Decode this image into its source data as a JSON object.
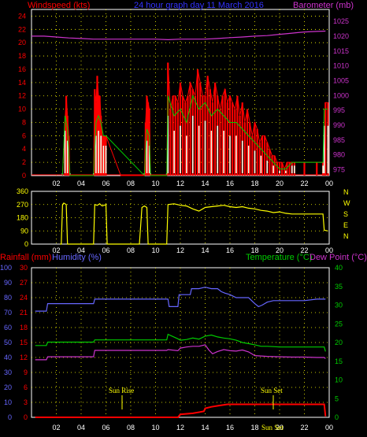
{
  "header": {
    "windspeed_label": "Windspeed (kts)",
    "graph_title": "24 hour graph day 11 March 2016",
    "barometer_label": "Barometer (mb)"
  },
  "bottom_header": {
    "rainfall_label": "Rainfall (mm)",
    "humidity_label": "Humidity (%)",
    "temperature_label": "Temperature (°C)",
    "dewpoint_label": "Dew Point (°C)"
  },
  "colors": {
    "wind_gust": "#ff0000",
    "wind_avg": "#00cc00",
    "wind_light": "#e8ffe8",
    "barometer": "#cc33cc",
    "direction": "#ffff00",
    "humidity": "#6666ff",
    "temperature": "#00cc00",
    "dewpoint": "#cc33cc",
    "rainfall": "#ff0000",
    "grid": "#ffff00"
  },
  "annotations": {
    "sunrise": "Sun Rise",
    "sunset": "Sun Set",
    "sunset_small": "Sun Set"
  },
  "chart_data": [
    {
      "id": "wind",
      "type": "line",
      "title": "24 hour graph day 11 March 2016",
      "xlabel": "",
      "x_ticks": [
        "02",
        "04",
        "06",
        "08",
        "10",
        "12",
        "14",
        "16",
        "18",
        "20",
        "22",
        "00"
      ],
      "xlim": [
        0,
        24
      ],
      "ylabel": "Windspeed (kts)",
      "y_ticks": [
        0,
        2,
        4,
        6,
        8,
        10,
        12,
        14,
        16,
        18,
        20,
        22,
        24
      ],
      "ylim": [
        0,
        25
      ],
      "y2label": "Barometer (mb)",
      "y2_ticks": [
        975,
        980,
        985,
        990,
        995,
        1000,
        1005,
        1010,
        1015,
        1020,
        1025
      ],
      "y2lim": [
        973,
        1029
      ],
      "grid": true,
      "series": [
        {
          "name": "Barometer (mb)",
          "axis": "right",
          "x": [
            0,
            1,
            2,
            3,
            4,
            5,
            6,
            7,
            8,
            9,
            10,
            11,
            12,
            13,
            14,
            15,
            16,
            17,
            18,
            19,
            20,
            21,
            22,
            23,
            23.7
          ],
          "values": [
            1020,
            1020,
            1019.7,
            1019.4,
            1019.2,
            1019,
            1019,
            1019,
            1019,
            1019,
            1019,
            1018.8,
            1019,
            1019,
            1019,
            1019.2,
            1019.5,
            1019.7,
            1020,
            1020.2,
            1020.6,
            1021,
            1021.4,
            1021.6,
            1021.7
          ]
        },
        {
          "name": "gust",
          "x": [
            2.5,
            2.7,
            2.8,
            2.9,
            3.0,
            3.1,
            3.2,
            5.0,
            5.1,
            5.2,
            5.3,
            5.4,
            5.5,
            5.6,
            5.7,
            5.8,
            5.9,
            6.0,
            7.2,
            9.1,
            9.2,
            9.3,
            9.4,
            9.5,
            9.6,
            10.9,
            11.0,
            11.2,
            11.4,
            11.6,
            11.8,
            12.0,
            12.2,
            12.4,
            12.6,
            12.8,
            13.0,
            13.2,
            13.4,
            13.6,
            13.8,
            14.0,
            14.2,
            14.4,
            14.6,
            14.8,
            15.0,
            15.2,
            15.4,
            15.6,
            15.8,
            16.0,
            16.2,
            16.4,
            16.6,
            16.8,
            17.0,
            17.2,
            17.4,
            17.6,
            17.8,
            18.0,
            18.2,
            18.4,
            18.6,
            18.8,
            19.0,
            19.2,
            19.4,
            19.6,
            19.8,
            20.0,
            20.2,
            20.4,
            20.6,
            20.8,
            21.0,
            21.2,
            22.0,
            23.0,
            23.5,
            23.6,
            23.7,
            23.9
          ],
          "values": [
            0,
            8,
            12,
            9,
            6,
            0,
            0,
            0,
            13,
            11,
            15,
            12,
            12,
            9,
            6,
            6,
            6,
            6,
            0,
            0,
            8,
            12,
            11,
            10,
            0,
            0,
            17,
            10,
            12,
            12,
            11,
            14,
            12,
            11,
            12,
            14,
            13,
            12,
            16,
            14,
            12,
            12,
            15,
            13,
            11,
            14,
            12,
            10,
            12,
            13,
            11,
            12,
            11,
            10,
            12,
            9,
            11,
            8,
            10,
            8,
            6,
            8,
            7,
            5,
            6,
            6,
            5,
            4,
            3,
            3,
            2,
            2,
            2,
            1,
            2,
            2,
            2,
            2,
            2,
            2,
            2,
            2,
            11,
            11
          ]
        },
        {
          "name": "average",
          "x": [
            2.5,
            2.7,
            2.9,
            3.1,
            5.0,
            5.2,
            5.4,
            5.6,
            5.8,
            6.0,
            9.1,
            9.3,
            9.5,
            9.6,
            10.9,
            11.0,
            11.5,
            12.0,
            12.5,
            13.0,
            13.5,
            14.0,
            14.5,
            15.0,
            15.5,
            16.0,
            16.5,
            17.0,
            17.5,
            18.0,
            18.5,
            19.0,
            19.5,
            20.0,
            20.5,
            21.0,
            21.2,
            23.5,
            23.6,
            23.9
          ],
          "values": [
            0,
            9,
            7,
            0,
            0,
            8,
            9,
            8,
            6,
            6,
            0,
            7,
            6,
            0,
            0,
            12,
            9,
            10,
            8,
            12,
            10,
            11,
            9,
            10,
            9,
            8,
            8,
            7,
            6,
            5,
            4,
            3,
            2,
            1,
            1,
            2,
            2,
            2,
            10,
            10
          ]
        }
      ]
    },
    {
      "id": "direction",
      "type": "line",
      "title": "",
      "xlabel": "",
      "x_ticks": [
        "02",
        "04",
        "06",
        "08",
        "10",
        "12",
        "14",
        "16",
        "18",
        "20",
        "22",
        "00"
      ],
      "xlim": [
        0,
        24
      ],
      "ylabel": "",
      "y_ticks": [
        0,
        90,
        180,
        270,
        360
      ],
      "ylim": [
        0,
        360
      ],
      "y2_ticks": [
        "N",
        "W",
        "S",
        "E",
        "N"
      ],
      "grid": true,
      "series": [
        {
          "name": "Wind direction",
          "x": [
            2.3,
            2.4,
            2.5,
            2.6,
            2.8,
            2.9,
            5.0,
            5.1,
            5.3,
            5.5,
            5.7,
            6.0,
            6.1,
            8.6,
            8.7,
            8.9,
            9.1,
            9.3,
            9.4,
            10.8,
            10.9,
            11.0,
            11.5,
            12.0,
            12.5,
            13.0,
            13.5,
            14.0,
            14.5,
            15.0,
            15.5,
            16.0,
            16.5,
            17.0,
            17.5,
            18.0,
            18.5,
            19.0,
            19.5,
            20.0,
            20.5,
            21.0,
            22.0,
            23.0,
            23.5,
            23.6,
            23.9
          ],
          "values": [
            0,
            0,
            270,
            280,
            270,
            0,
            0,
            270,
            265,
            275,
            260,
            270,
            0,
            0,
            0,
            250,
            260,
            250,
            0,
            0,
            0,
            270,
            275,
            265,
            260,
            240,
            225,
            250,
            255,
            260,
            265,
            255,
            250,
            255,
            245,
            240,
            230,
            225,
            215,
            220,
            210,
            205,
            205,
            205,
            205,
            95,
            90
          ]
        }
      ]
    },
    {
      "id": "climate",
      "type": "line",
      "title": "",
      "xlabel": "",
      "x_ticks": [
        "02",
        "04",
        "06",
        "08",
        "10",
        "12",
        "14",
        "16",
        "18",
        "20",
        "22",
        "00"
      ],
      "xlim": [
        0,
        24
      ],
      "ylabel": "Rainfall (mm) / Humidity (%)",
      "rain_ticks": [
        0,
        3,
        6,
        9,
        12,
        15,
        18,
        21,
        24,
        27,
        30
      ],
      "rain_lim": [
        0,
        30
      ],
      "humidity_ticks": [
        0,
        10,
        20,
        30,
        40,
        50,
        60,
        70,
        80,
        90,
        100
      ],
      "humidity_lim": [
        0,
        100
      ],
      "y2label": "Temperature (°C) / Dew Point (°C)",
      "temp_ticks": [
        0,
        5,
        10,
        15,
        20,
        25,
        30,
        35,
        40
      ],
      "temp_lim": [
        0,
        40
      ],
      "grid": true,
      "series": [
        {
          "name": "Humidity (%)",
          "x": [
            0.3,
            1.2,
            1.3,
            5.0,
            5.1,
            11.0,
            11.1,
            11.8,
            11.9,
            12.8,
            12.9,
            13.5,
            14.0,
            14.5,
            15.0,
            15.3,
            15.6,
            16.0,
            16.5,
            17.0,
            17.5,
            18.0,
            18.3,
            18.6,
            19.0,
            19.5,
            20.0,
            21.0,
            22.0,
            23.0,
            23.7
          ],
          "values": [
            71,
            71,
            76,
            76,
            79,
            79,
            74,
            74,
            82,
            82,
            86,
            86,
            87,
            86,
            86,
            84,
            83,
            82,
            80,
            80,
            80,
            76,
            74,
            75,
            77,
            78,
            78,
            78,
            78,
            79,
            79
          ]
        },
        {
          "name": "Temperature (°C)",
          "x": [
            0.3,
            1.2,
            1.3,
            5.0,
            5.1,
            10.9,
            11.0,
            11.8,
            12.0,
            12.5,
            13.0,
            13.5,
            14.0,
            14.5,
            15.0,
            15.5,
            16.0,
            16.5,
            17.0,
            17.5,
            18.0,
            18.5,
            19.0,
            19.5,
            20.0,
            21.0,
            22.0,
            23.0,
            23.6,
            23.7
          ],
          "values": [
            19.2,
            19.2,
            20.1,
            20.1,
            20.7,
            20.7,
            22.2,
            21.0,
            20.6,
            20.8,
            21.2,
            20.9,
            21.7,
            22.0,
            21.5,
            21.2,
            21.0,
            20.6,
            20.0,
            19.7,
            19.4,
            19.0,
            19.0,
            18.9,
            18.8,
            18.8,
            18.8,
            18.8,
            18.8,
            17.6
          ]
        },
        {
          "name": "Dew Point (°C)",
          "x": [
            0.3,
            1.2,
            1.3,
            5.0,
            5.1,
            10.9,
            11.0,
            11.8,
            12.0,
            12.5,
            13.0,
            13.5,
            14.0,
            14.3,
            14.6,
            15.0,
            15.5,
            16.0,
            16.5,
            17.0,
            17.5,
            18.0,
            18.5,
            19.0,
            20.0,
            21.0,
            22.0,
            23.0,
            23.6,
            23.7
          ],
          "values": [
            15.4,
            15.4,
            16.2,
            16.2,
            17.9,
            17.9,
            18.1,
            17.8,
            18.5,
            18.8,
            19.0,
            19.0,
            19.4,
            18.0,
            17.0,
            17.6,
            18.1,
            17.8,
            17.7,
            18.0,
            17.5,
            16.5,
            16.4,
            16.3,
            16.2,
            16.1,
            16.1,
            16.0,
            16.0,
            15.7
          ]
        },
        {
          "name": "Rainfall (mm)",
          "x": [
            0.3,
            11.8,
            12.0,
            13.0,
            13.9,
            14.0,
            14.5,
            15.0,
            15.8,
            16.0,
            18.0,
            20.0,
            22.0,
            23.5,
            23.6,
            23.7
          ],
          "values": [
            0,
            0,
            0.6,
            0.8,
            1.2,
            1.8,
            2.1,
            2.3,
            2.6,
            2.6,
            2.6,
            2.6,
            2.6,
            2.6,
            2.6,
            0.2
          ]
        }
      ]
    }
  ]
}
